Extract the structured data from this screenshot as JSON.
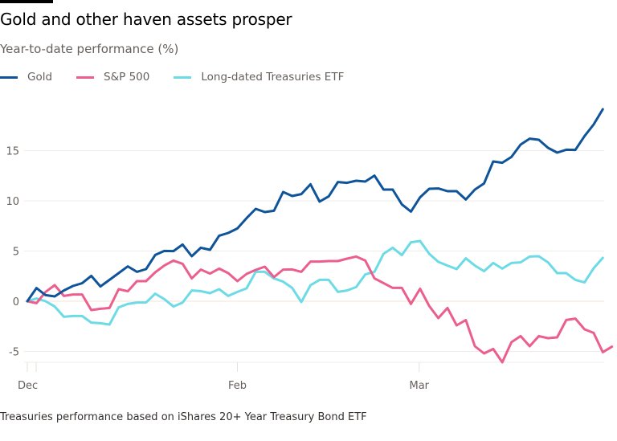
{
  "title": "Gold and other haven assets prosper",
  "subtitle": "Year-to-date performance (%)",
  "footer": "Treasuries performance based on iShares 20+ Year Treasury Bond ETF",
  "chart_data": {
    "type": "line",
    "title": "Gold and other haven assets prosper",
    "ylabel": "Year-to-date performance (%)",
    "xlabel": "",
    "ylim": [
      -7,
      20
    ],
    "y_ticks": [
      "15",
      "10",
      "5",
      "0",
      "-5"
    ],
    "x_ticks": [
      "Dec",
      "Feb",
      "Mar"
    ],
    "grid": true,
    "legend": "top-left",
    "series": [
      {
        "name": "Gold",
        "color": "#0f5499",
        "values": [
          0,
          1.31,
          0.61,
          0.48,
          1.07,
          1.52,
          1.79,
          2.53,
          1.47,
          2.13,
          2.8,
          3.47,
          2.93,
          3.2,
          4.61,
          5.01,
          4.99,
          5.65,
          4.48,
          5.33,
          5.12,
          6.53,
          6.8,
          7.25,
          8.27,
          9.2,
          8.88,
          9.01,
          10.88,
          10.48,
          10.67,
          11.65,
          9.92,
          10.45,
          11.87,
          11.79,
          12.0,
          11.92,
          12.51,
          11.12,
          11.12,
          9.65,
          8.93,
          10.35,
          11.2,
          11.23,
          10.96,
          10.96,
          10.13,
          11.12,
          11.73,
          13.92,
          13.79,
          14.37,
          15.6,
          16.19,
          16.08,
          15.28,
          14.8,
          15.09,
          15.07,
          16.45,
          17.6,
          19.12
        ]
      },
      {
        "name": "S&P 500",
        "color": "#eb5e8d",
        "values": [
          0,
          -0.19,
          0.93,
          1.6,
          0.53,
          0.67,
          0.67,
          -0.88,
          -0.75,
          -0.67,
          1.2,
          0.99,
          2.0,
          2.0,
          2.88,
          3.55,
          4.05,
          3.73,
          2.27,
          3.15,
          2.75,
          3.25,
          2.8,
          2.0,
          2.72,
          3.12,
          3.44,
          2.4,
          3.15,
          3.17,
          2.93,
          3.95,
          3.95,
          4.0,
          4.0,
          4.24,
          4.45,
          4.05,
          2.27,
          1.81,
          1.33,
          1.33,
          -0.27,
          1.25,
          -0.48,
          -1.68,
          -0.67,
          -2.4,
          -1.87,
          -4.48,
          -5.2,
          -4.75,
          -6.08,
          -4.08,
          -3.47,
          -4.48,
          -3.47,
          -3.68,
          -3.6,
          -1.87,
          -1.73,
          -2.8,
          -3.15,
          -5.07,
          -4.53
        ]
      },
      {
        "name": "Long-dated Treasuries ETF",
        "color": "#6ddbe6",
        "values": [
          0,
          0.27,
          0,
          -0.53,
          -1.55,
          -1.47,
          -1.47,
          -2.13,
          -2.19,
          -2.32,
          -0.61,
          -0.27,
          -0.13,
          -0.13,
          0.75,
          0.21,
          -0.53,
          -0.13,
          1.07,
          1.01,
          0.8,
          1.2,
          0.53,
          0.93,
          1.28,
          2.93,
          2.93,
          2.27,
          1.95,
          1.33,
          -0.08,
          1.6,
          2.13,
          2.13,
          0.93,
          1.07,
          1.41,
          2.67,
          2.93,
          4.72,
          5.33,
          4.59,
          5.87,
          6.0,
          4.72,
          3.92,
          3.55,
          3.2,
          4.27,
          3.55,
          2.99,
          3.81,
          3.25,
          3.81,
          3.87,
          4.45,
          4.48,
          3.87,
          2.8,
          2.8,
          2.13,
          1.87,
          3.28,
          4.32
        ]
      }
    ]
  }
}
